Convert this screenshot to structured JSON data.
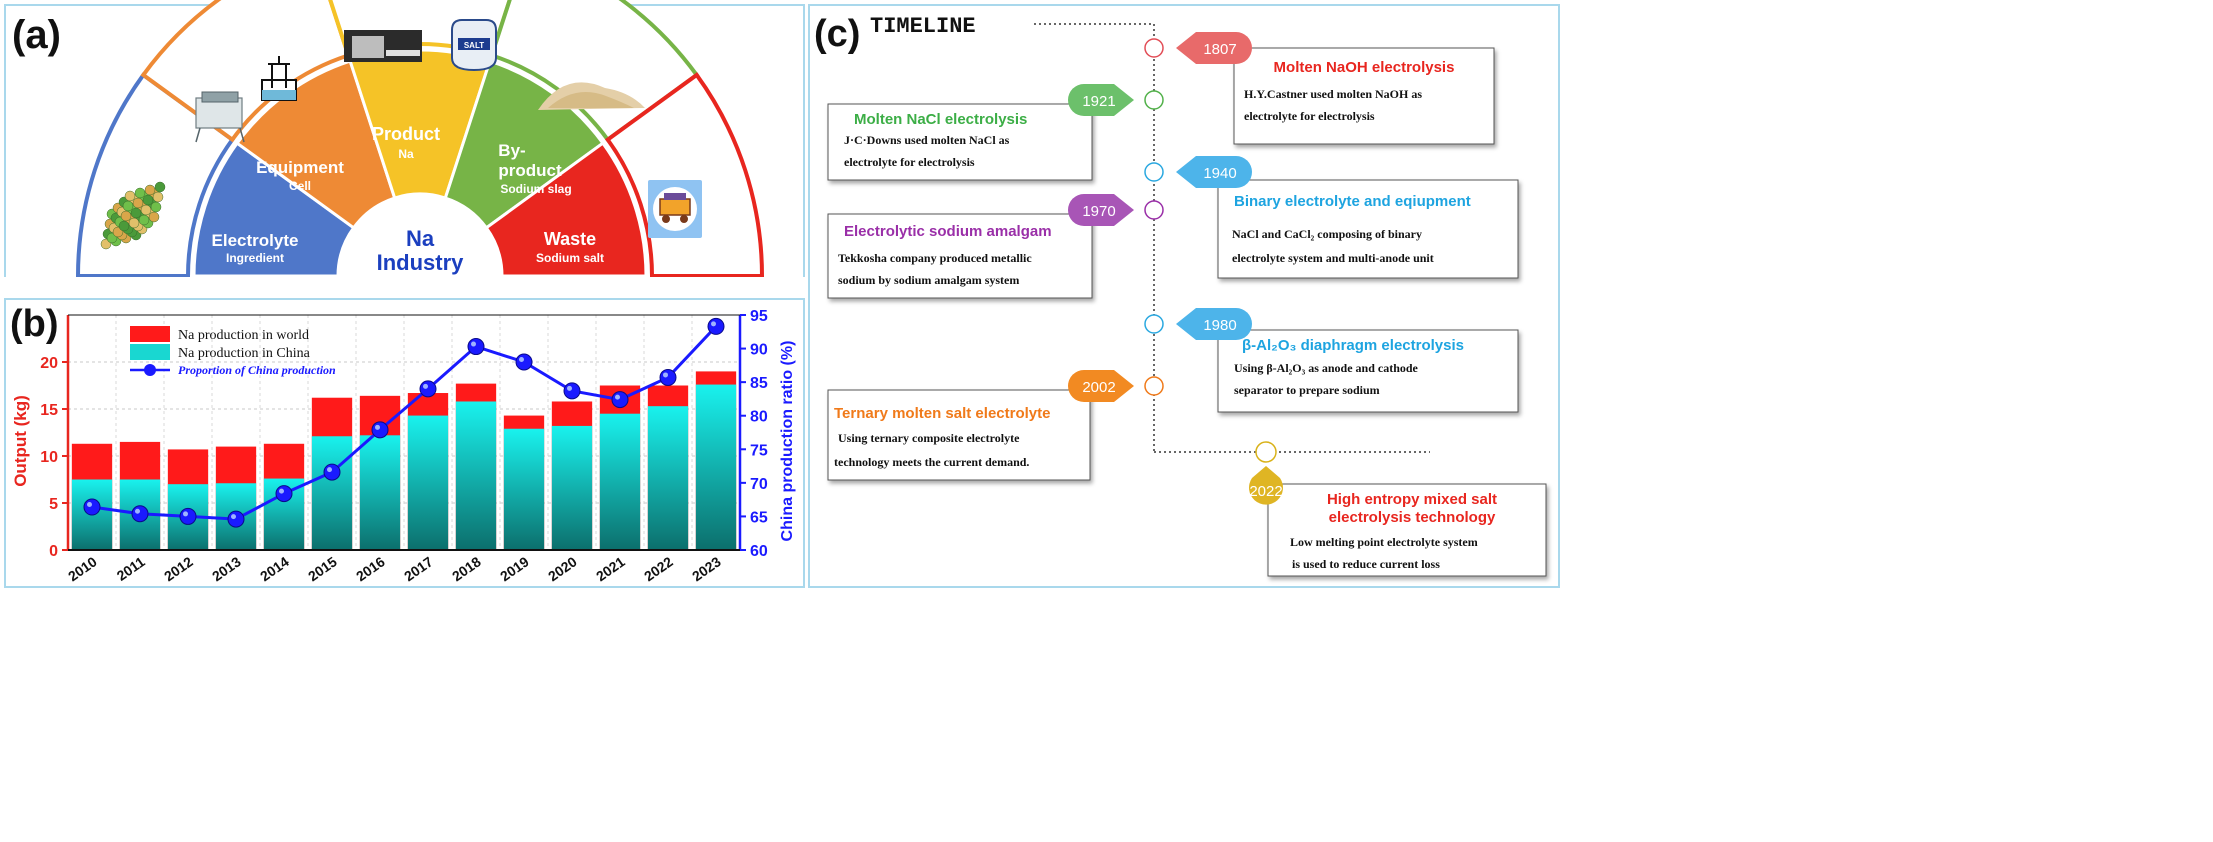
{
  "panels": {
    "a": {
      "label": "(a)",
      "center": {
        "line1": "Na",
        "line2": "Industry"
      },
      "sectors": [
        {
          "title": "Electrolyte",
          "sub": "Ingredient",
          "color": "#4f77c9"
        },
        {
          "title": "Equipment",
          "sub": "Cell",
          "color": "#ee8a35"
        },
        {
          "title": "Product",
          "sub": "Na",
          "color": "#f5c327"
        },
        {
          "title": "By-",
          "title2": "product",
          "sub": "Sodium slag",
          "color": "#77b447"
        },
        {
          "title": "Waste",
          "sub": "Sodium salt",
          "color": "#e8261f"
        }
      ],
      "salt_label": "SALT"
    },
    "b": {
      "label": "(b)",
      "legend": [
        {
          "name": "Na production in world",
          "color": "#ff1a1a"
        },
        {
          "name": "Na production in China",
          "color": "#19d7d1"
        },
        {
          "name": "Proportion of China production",
          "color": "#1a1aff"
        }
      ],
      "ylabel_left": "Output (kg)",
      "ylabel_right": "China production ratio (%)",
      "y_ticks_left": [
        "0",
        "5",
        "10",
        "15",
        "20"
      ],
      "y_ticks_right": [
        "60",
        "65",
        "70",
        "75",
        "80",
        "85",
        "90",
        "95"
      ]
    },
    "c": {
      "label": "(c)",
      "timeline_title": "TIMELINE",
      "events": [
        {
          "year": "1807",
          "title": "Molten NaOH electrolysis",
          "desc1": "H.Y.Castner used molten NaOH as",
          "desc2": "electrolyte for electrolysis"
        },
        {
          "year": "1921",
          "title": "Molten NaCl electrolysis",
          "desc1": "J·C·Downs used molten NaCl as",
          "desc2": "electrolyte for electrolysis"
        },
        {
          "year": "1940",
          "title": "Binary electrolyte and eqiupment",
          "desc1": "NaCl and CaCl₂ composing of binary",
          "desc2": "electrolyte system and multi-anode unit"
        },
        {
          "year": "1970",
          "title": "Electrolytic sodium amalgam",
          "desc1": "Tekkosha company produced metallic",
          "desc2": "sodium by sodium amalgam system"
        },
        {
          "year": "1980",
          "title": "β-Al₂O₃ diaphragm electrolysis",
          "desc1": "Using β-Al₂O₃ as anode and cathode",
          "desc2": "separator to prepare sodium"
        },
        {
          "year": "2002",
          "title": "Ternary molten salt electrolyte",
          "desc1": "Using ternary composite electrolyte",
          "desc2": "technology meets the current demand."
        },
        {
          "year": "2022",
          "title": "High entropy mixed salt",
          "title2": "electrolysis technology",
          "desc1": "Low melting point electrolyte system",
          "desc2": "is used to reduce current loss"
        }
      ]
    }
  },
  "chart_data": {
    "type": "bar",
    "categories": [
      "2010",
      "2011",
      "2012",
      "2013",
      "2014",
      "2015",
      "2016",
      "2017",
      "2018",
      "2019",
      "2020",
      "2021",
      "2022",
      "2023"
    ],
    "series": [
      {
        "name": "Na production in world",
        "type": "bar",
        "values": [
          11.3,
          11.5,
          10.7,
          11.0,
          11.3,
          16.2,
          16.4,
          16.7,
          17.7,
          14.3,
          15.8,
          17.5,
          17.5,
          19.0
        ]
      },
      {
        "name": "Na production in China",
        "type": "bar",
        "values": [
          7.5,
          7.5,
          7.0,
          7.1,
          7.6,
          12.1,
          12.2,
          14.3,
          15.8,
          12.9,
          13.2,
          14.5,
          15.3,
          17.6
        ]
      },
      {
        "name": "Proportion of China production",
        "type": "line",
        "axis": "right",
        "values": [
          66.4,
          65.4,
          65.0,
          64.6,
          68.4,
          71.6,
          77.9,
          84.0,
          90.3,
          88.0,
          83.7,
          82.4,
          85.7,
          93.3
        ]
      }
    ],
    "ylabel": "Output (kg)",
    "ylabel_right": "China production ratio (%)",
    "ylim": [
      0,
      25
    ],
    "ylim_right": [
      60,
      95
    ],
    "grid": true,
    "legend": "top-left"
  }
}
